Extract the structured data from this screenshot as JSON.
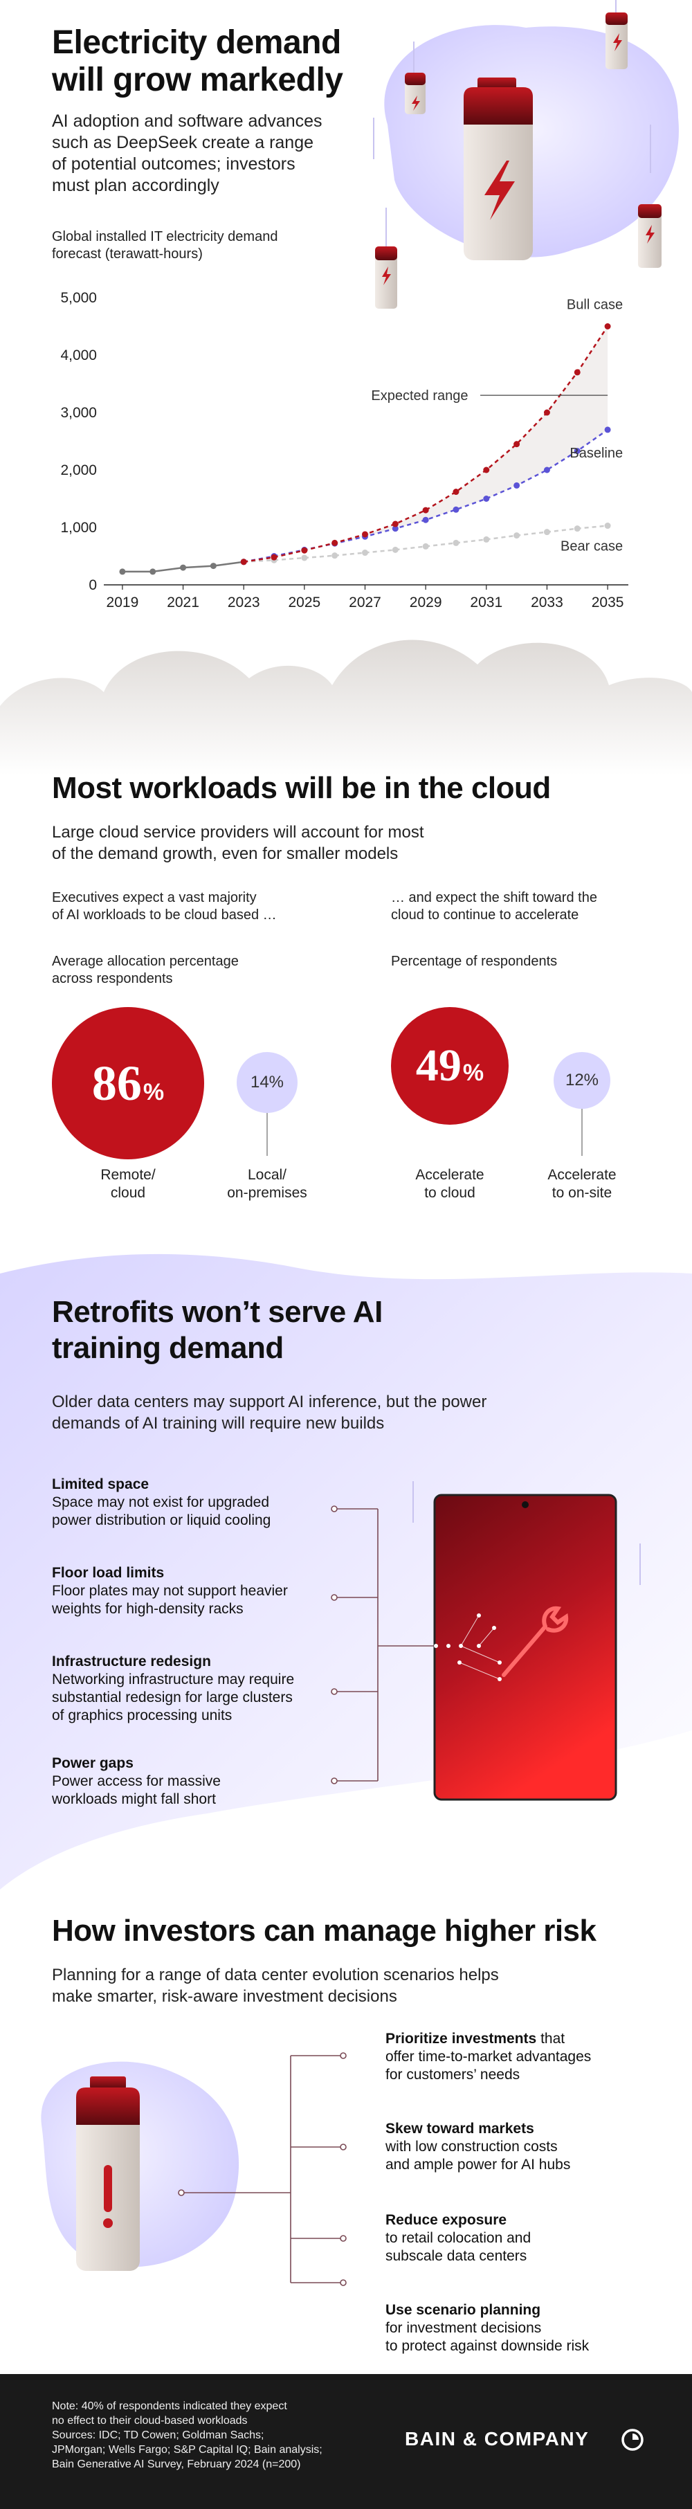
{
  "section1": {
    "title_line1": "Electricity demand",
    "title_line2": "will grow markedly",
    "subtitle": [
      "AI adoption and software advances",
      "such as DeepSeek create a range",
      "of potential outcomes; investors",
      "must plan accordingly"
    ],
    "chart_caption": [
      "Global installed IT electricity demand",
      "forecast (terawatt-hours)"
    ]
  },
  "chart_data": {
    "type": "line",
    "title": "Global installed IT electricity demand forecast (terawatt-hours)",
    "x_ticks": [
      "2019",
      "2021",
      "2023",
      "2025",
      "2027",
      "2029",
      "2031",
      "2033",
      "2035"
    ],
    "y_ticks": [
      "5,000",
      "4,000",
      "3,000",
      "2,000",
      "1,000",
      "0"
    ],
    "ylim": [
      0,
      5000
    ],
    "xlim": [
      2018.5,
      2035.5
    ],
    "historical": {
      "x": [
        2019,
        2020,
        2021,
        2022,
        2023
      ],
      "values": [
        230,
        230,
        300,
        330,
        400
      ]
    },
    "series": [
      {
        "name": "Bull case",
        "x": [
          2023,
          2024,
          2025,
          2026,
          2027,
          2028,
          2029,
          2030,
          2031,
          2032,
          2033,
          2034,
          2035
        ],
        "values": [
          400,
          480,
          600,
          730,
          880,
          1060,
          1300,
          1620,
          2000,
          2450,
          3000,
          3700,
          4500
        ]
      },
      {
        "name": "Baseline",
        "x": [
          2023,
          2024,
          2025,
          2026,
          2027,
          2028,
          2029,
          2030,
          2031,
          2032,
          2033,
          2034,
          2035
        ],
        "values": [
          400,
          500,
          610,
          720,
          840,
          980,
          1130,
          1310,
          1500,
          1730,
          2000,
          2330,
          2700
        ]
      },
      {
        "name": "Bear case",
        "x": [
          2023,
          2024,
          2025,
          2026,
          2027,
          2028,
          2029,
          2030,
          2031,
          2032,
          2033,
          2034,
          2035
        ],
        "values": [
          400,
          430,
          470,
          510,
          560,
          610,
          670,
          730,
          790,
          860,
          920,
          980,
          1030
        ]
      }
    ],
    "annotation": "Expected range",
    "colors": {
      "bull": "#b4141c",
      "baseline": "#5b53d6",
      "bear": "#cccccc",
      "historical": "#777777",
      "range": "#f2efee"
    }
  },
  "section2": {
    "title": "Most workloads will be in the cloud",
    "subtitle": [
      "Large cloud service providers will account for most",
      "of the demand growth, even for smaller models"
    ],
    "left_intro": [
      "Executives expect a vast majority",
      "of AI workloads to be cloud based …"
    ],
    "left_caption": [
      "Average allocation percentage",
      "across respondents"
    ],
    "right_intro": [
      "… and expect the shift toward the",
      "cloud to continue to accelerate"
    ],
    "right_caption": "Percentage of respondents",
    "stats": [
      {
        "value": "86",
        "unit": "%",
        "label": [
          "Remote/",
          "cloud"
        ]
      },
      {
        "value": "14%",
        "label": [
          "Local/",
          "on-premises"
        ]
      },
      {
        "value": "49",
        "unit": "%",
        "label": [
          "Accelerate",
          "to cloud"
        ]
      },
      {
        "value": "12%",
        "label": [
          "Accelerate",
          "to on-site"
        ]
      }
    ]
  },
  "section3": {
    "title_line1": "Retrofits won’t serve AI",
    "title_line2": "training demand",
    "subtitle": [
      "Older data centers may support AI inference, but the power",
      "demands of AI training will require new builds"
    ],
    "items": [
      {
        "title": "Limited space",
        "body": [
          "Space may not exist for upgraded",
          "power distribution or liquid cooling"
        ]
      },
      {
        "title": "Floor load limits",
        "body": [
          "Floor plates may not support heavier",
          "weights for high-density racks"
        ]
      },
      {
        "title": "Infrastructure redesign",
        "body": [
          "Networking infrastructure may require",
          "substantial redesign for large clusters",
          "of graphics processing units"
        ]
      },
      {
        "title": "Power gaps",
        "body": [
          "Power access for massive",
          "workloads might fall short"
        ]
      }
    ]
  },
  "section4": {
    "title": "How investors can manage higher risk",
    "subtitle": [
      "Planning for a range of data center evolution scenarios helps",
      "make smarter, risk-aware investment decisions"
    ],
    "items": [
      {
        "title": "Prioritize investments",
        "title_rest": " that",
        "body": [
          "offer time-to-market advantages",
          "for customers’ needs"
        ]
      },
      {
        "title": "Skew toward markets",
        "title_rest": "",
        "body": [
          "with low construction costs",
          "and ample power for AI hubs"
        ]
      },
      {
        "title": "Reduce exposure",
        "title_rest": "",
        "body": [
          "to retail colocation and",
          "subscale data centers"
        ]
      },
      {
        "title": "Use scenario planning",
        "title_rest": "",
        "body": [
          "for investment decisions",
          "to protect against downside risk"
        ]
      }
    ]
  },
  "footer": {
    "note": [
      "Note: 40% of respondents indicated they expect",
      "no effect to their cloud-based workloads",
      "Sources: IDC; TD Cowen; Goldman Sachs;",
      "JPMorgan; Wells Fargo; S&P Capital IQ; Bain analysis;",
      "Bain Generative AI Survey, February 2024 (n=200)"
    ],
    "brand": "BAIN & COMPANY"
  }
}
